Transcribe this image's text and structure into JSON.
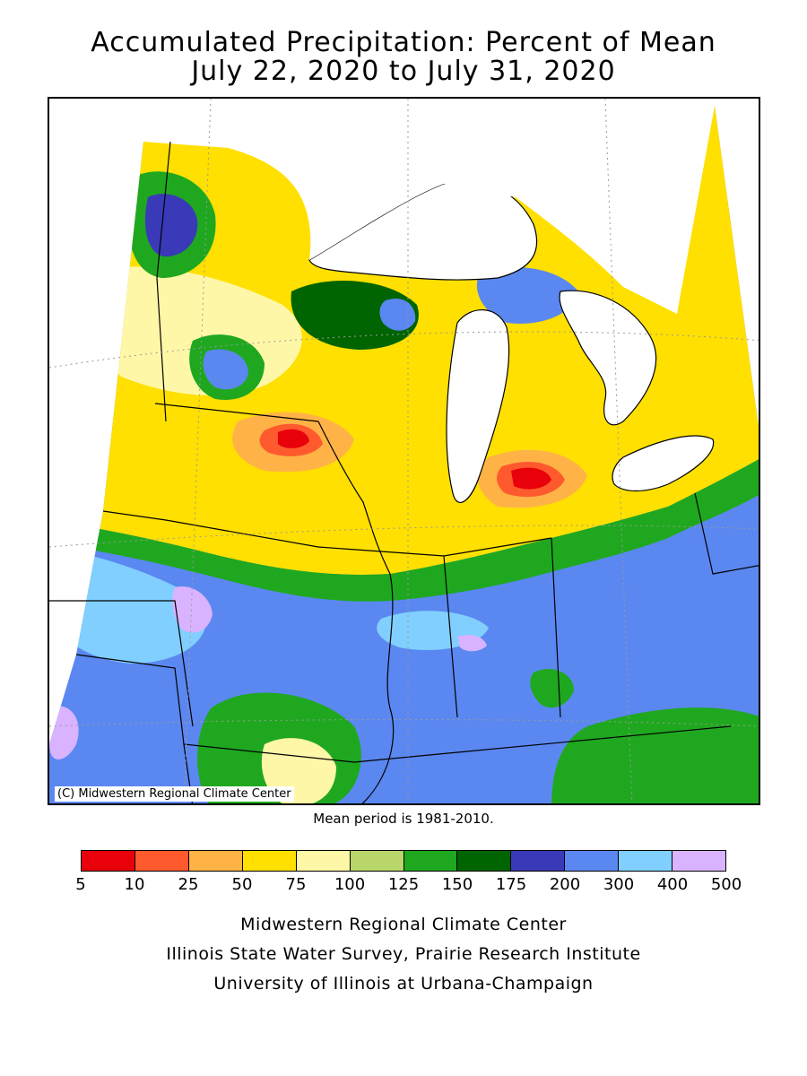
{
  "title": {
    "line1": "Accumulated Precipitation: Percent of Mean",
    "line2": "July 22, 2020 to July 31, 2020"
  },
  "copyright": "(C) Midwestern Regional Climate Center",
  "mean_note": "Mean period is 1981-2010.",
  "legend": {
    "colors": [
      "#e8000b",
      "#ff5a2e",
      "#ffb347",
      "#ffe000",
      "#fff7a8",
      "#b8d66a",
      "#1fa81f",
      "#006400",
      "#3a3ab8",
      "#5b87f0",
      "#80cfff",
      "#d9b3ff"
    ],
    "ticks": [
      "5",
      "10",
      "25",
      "50",
      "75",
      "100",
      "125",
      "150",
      "175",
      "200",
      "300",
      "400",
      "500"
    ]
  },
  "footer": {
    "line1": "Midwestern Regional Climate Center",
    "line2": "Illinois State Water Survey, Prairie Research Institute",
    "line3": "University of Illinois at Urbana-Champaign"
  },
  "map": {
    "background_color": "#ffffff",
    "lake_color": "#ffffff",
    "border_color": "#000000"
  }
}
